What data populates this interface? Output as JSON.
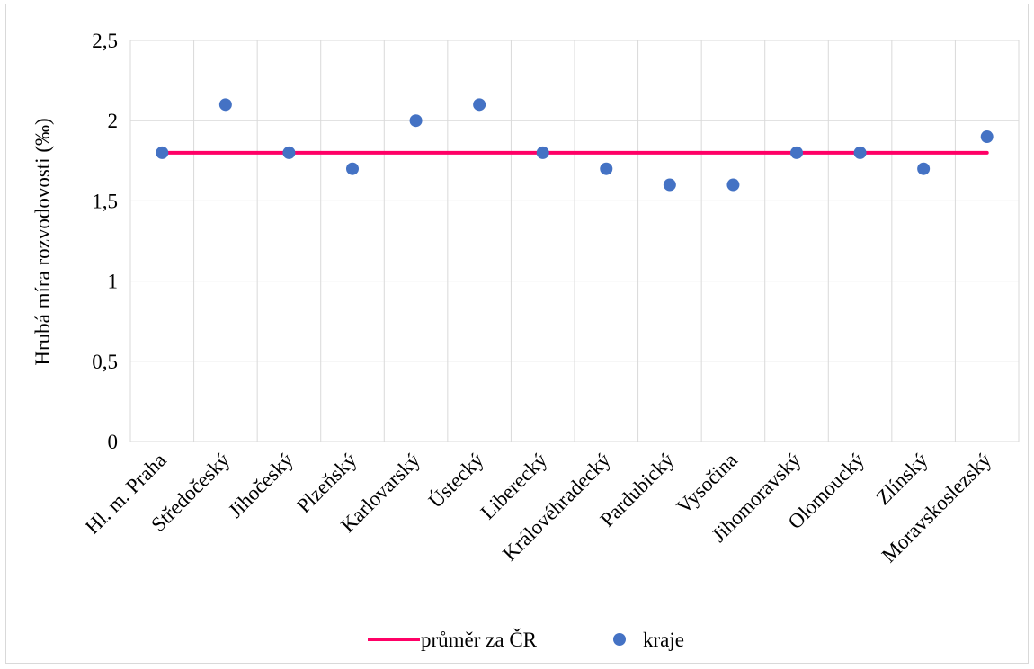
{
  "chart_data": {
    "type": "scatter",
    "categories": [
      "Hl. m. Praha",
      "Středočeský",
      "Jihočeský",
      "Plzeňský",
      "Karlovarský",
      "Ústecký",
      "Liberecký",
      "Královéhradecký",
      "Pardubický",
      "Vysočina",
      "Jihomoravský",
      "Olomoucký",
      "Zlínský",
      "Moravskoslezský"
    ],
    "series": [
      {
        "name": "průměr za ČR",
        "type": "line",
        "color": "#ff0066",
        "values": [
          1.8,
          1.8,
          1.8,
          1.8,
          1.8,
          1.8,
          1.8,
          1.8,
          1.8,
          1.8,
          1.8,
          1.8,
          1.8,
          1.8
        ]
      },
      {
        "name": "kraje",
        "type": "scatter",
        "color": "#4472c4",
        "values": [
          1.8,
          2.1,
          1.8,
          1.7,
          2.0,
          2.1,
          1.8,
          1.7,
          1.6,
          1.6,
          1.8,
          1.8,
          1.7,
          1.9
        ]
      }
    ],
    "ylabel": "Hrubá míra rozvodovosti (‰)",
    "xlabel": "",
    "ylim": [
      0,
      2.5
    ],
    "yticks": [
      "0",
      "0,5",
      "1",
      "1,5",
      "2",
      "2,5"
    ],
    "grid": true,
    "legend_position": "bottom"
  }
}
